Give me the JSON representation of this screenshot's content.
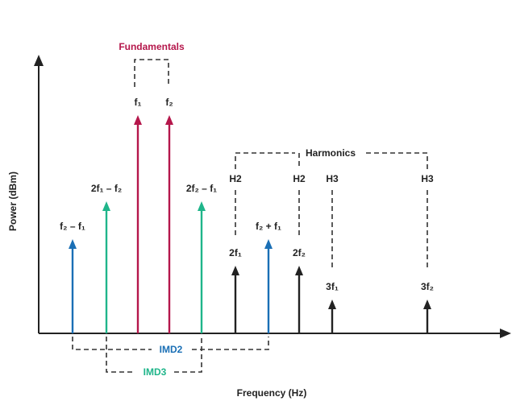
{
  "groups": {
    "fundamentals": "Fundamentals",
    "harmonics": "Harmonics",
    "imd2": "IMD2",
    "imd3": "IMD3"
  },
  "harmonic_orders": [
    "H2",
    "H2",
    "H3",
    "H3"
  ],
  "tones": [
    "f₂ – f₁",
    "2f₁ – f₂",
    "f₁",
    "f₂",
    "2f₂ – f₁",
    "2f₁",
    "f₂ + f₁",
    "2f₂",
    "3f₁",
    "3f₂"
  ],
  "axes": {
    "y": "Power (dBm)",
    "x": "Frequency (Hz)"
  }
}
